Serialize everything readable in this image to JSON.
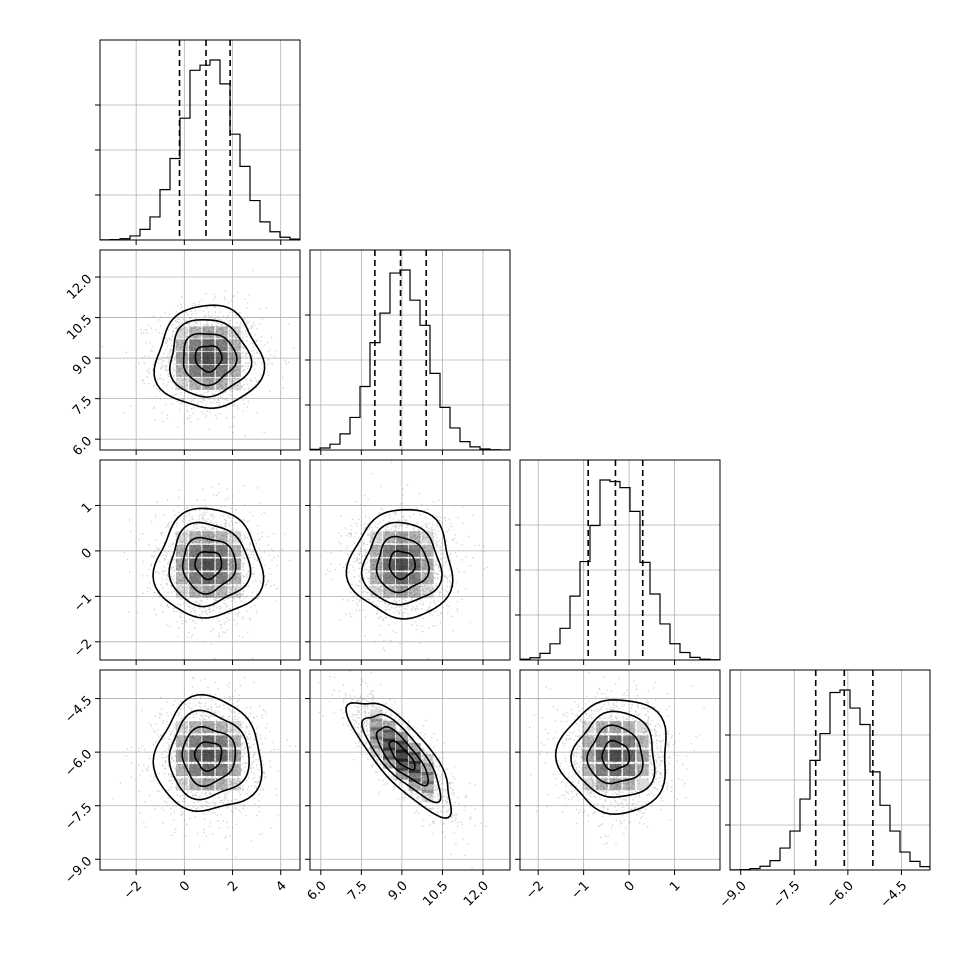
{
  "chart_data": {
    "type": "corner",
    "parameters": [
      {
        "name": "",
        "range": [
          -3.5,
          4.8
        ],
        "mean": 1.0,
        "sd": 1.1,
        "quantiles": [
          -0.2,
          0.9,
          1.9
        ],
        "ticks": [
          -2,
          0,
          2,
          4
        ],
        "tick_labels": [
          "−2",
          "0",
          "2",
          "4"
        ]
      },
      {
        "name": "",
        "range": [
          5.6,
          13.0
        ],
        "mean": 9.0,
        "sd": 0.95,
        "quantiles": [
          8.0,
          8.95,
          9.9
        ],
        "ticks": [
          6.0,
          7.5,
          9.0,
          10.5,
          12.0
        ],
        "tick_labels": [
          "6.0",
          "7.5",
          "9.0",
          "10.5",
          "12.0"
        ]
      },
      {
        "name": "",
        "range": [
          -2.4,
          2.0
        ],
        "mean": -0.3,
        "sd": 0.6,
        "quantiles": [
          -0.9,
          -0.3,
          0.3
        ],
        "ticks": [
          -2,
          -1,
          0,
          1
        ],
        "tick_labels": [
          "−2",
          "−1",
          "0",
          "1"
        ]
      },
      {
        "name": "",
        "range": [
          -9.3,
          -3.7
        ],
        "mean": -6.1,
        "sd": 0.8,
        "quantiles": [
          -6.9,
          -6.1,
          -5.3
        ],
        "ticks": [
          -9.0,
          -7.5,
          -6.0,
          -4.5
        ],
        "tick_labels": [
          "−9.0",
          "−7.5",
          "−6.0",
          "−4.5"
        ]
      }
    ],
    "correlations": {
      "1-3": -0.78
    },
    "contour_levels": [
      0.5,
      1.0,
      1.5,
      2.0
    ],
    "grid": true,
    "histogram_bins": 20,
    "scatter_color": "#9a9a9a",
    "density_color": "#000000",
    "line_color": "#000000"
  }
}
